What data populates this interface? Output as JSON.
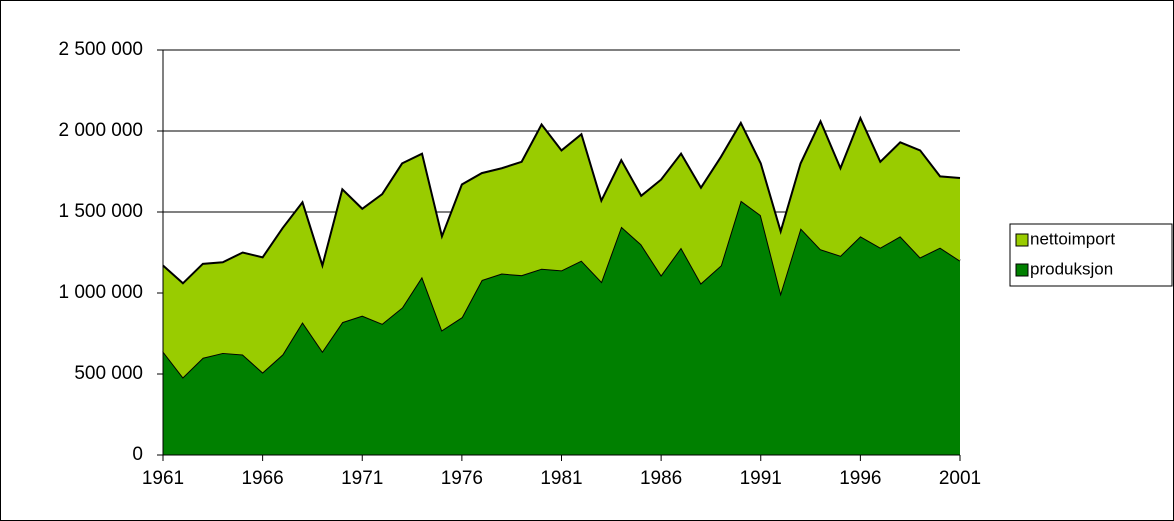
{
  "chart_data": {
    "type": "stacked_area",
    "x": [
      1961,
      1962,
      1963,
      1964,
      1965,
      1966,
      1967,
      1968,
      1969,
      1970,
      1971,
      1972,
      1973,
      1974,
      1975,
      1976,
      1977,
      1978,
      1979,
      1980,
      1981,
      1982,
      1983,
      1984,
      1985,
      1986,
      1987,
      1988,
      1989,
      1990,
      1991,
      1992,
      1993,
      1994,
      1995,
      1996,
      1997,
      1998,
      1999,
      2000,
      2001
    ],
    "series": [
      {
        "name": "produksjon",
        "color": "#008000",
        "values": [
          640000,
          480000,
          600000,
          630000,
          620000,
          510000,
          620000,
          820000,
          640000,
          820000,
          860000,
          810000,
          910000,
          1100000,
          770000,
          850000,
          1080000,
          1120000,
          1110000,
          1150000,
          1140000,
          1200000,
          1070000,
          1410000,
          1300000,
          1110000,
          1280000,
          1060000,
          1170000,
          1570000,
          1480000,
          1000000,
          1400000,
          1270000,
          1230000,
          1350000,
          1280000,
          1350000,
          1220000,
          1280000,
          1200000
        ]
      },
      {
        "name": "nettoimport",
        "color": "#99cc00",
        "values": [
          530000,
          580000,
          580000,
          560000,
          630000,
          710000,
          780000,
          740000,
          530000,
          820000,
          660000,
          800000,
          890000,
          760000,
          580000,
          820000,
          660000,
          650000,
          700000,
          890000,
          740000,
          780000,
          500000,
          410000,
          300000,
          590000,
          580000,
          590000,
          670000,
          480000,
          320000,
          380000,
          400000,
          790000,
          540000,
          730000,
          530000,
          580000,
          660000,
          440000,
          510000
        ]
      }
    ],
    "xlim": [
      1961,
      2001
    ],
    "xticks": [
      1961,
      1966,
      1971,
      1976,
      1981,
      1986,
      1991,
      1996,
      2001
    ],
    "ylim": [
      0,
      2500000
    ],
    "yticks": [
      0,
      {
        "value": 500000,
        "label": "500 000"
      },
      {
        "value": 1000000,
        "label": "1 000 000"
      },
      {
        "value": 1500000,
        "label": "1 500 000"
      },
      {
        "value": 2000000,
        "label": "2 000 000"
      },
      {
        "value": 2500000,
        "label": "2 500 000"
      }
    ],
    "grid": true,
    "legend": "right"
  }
}
